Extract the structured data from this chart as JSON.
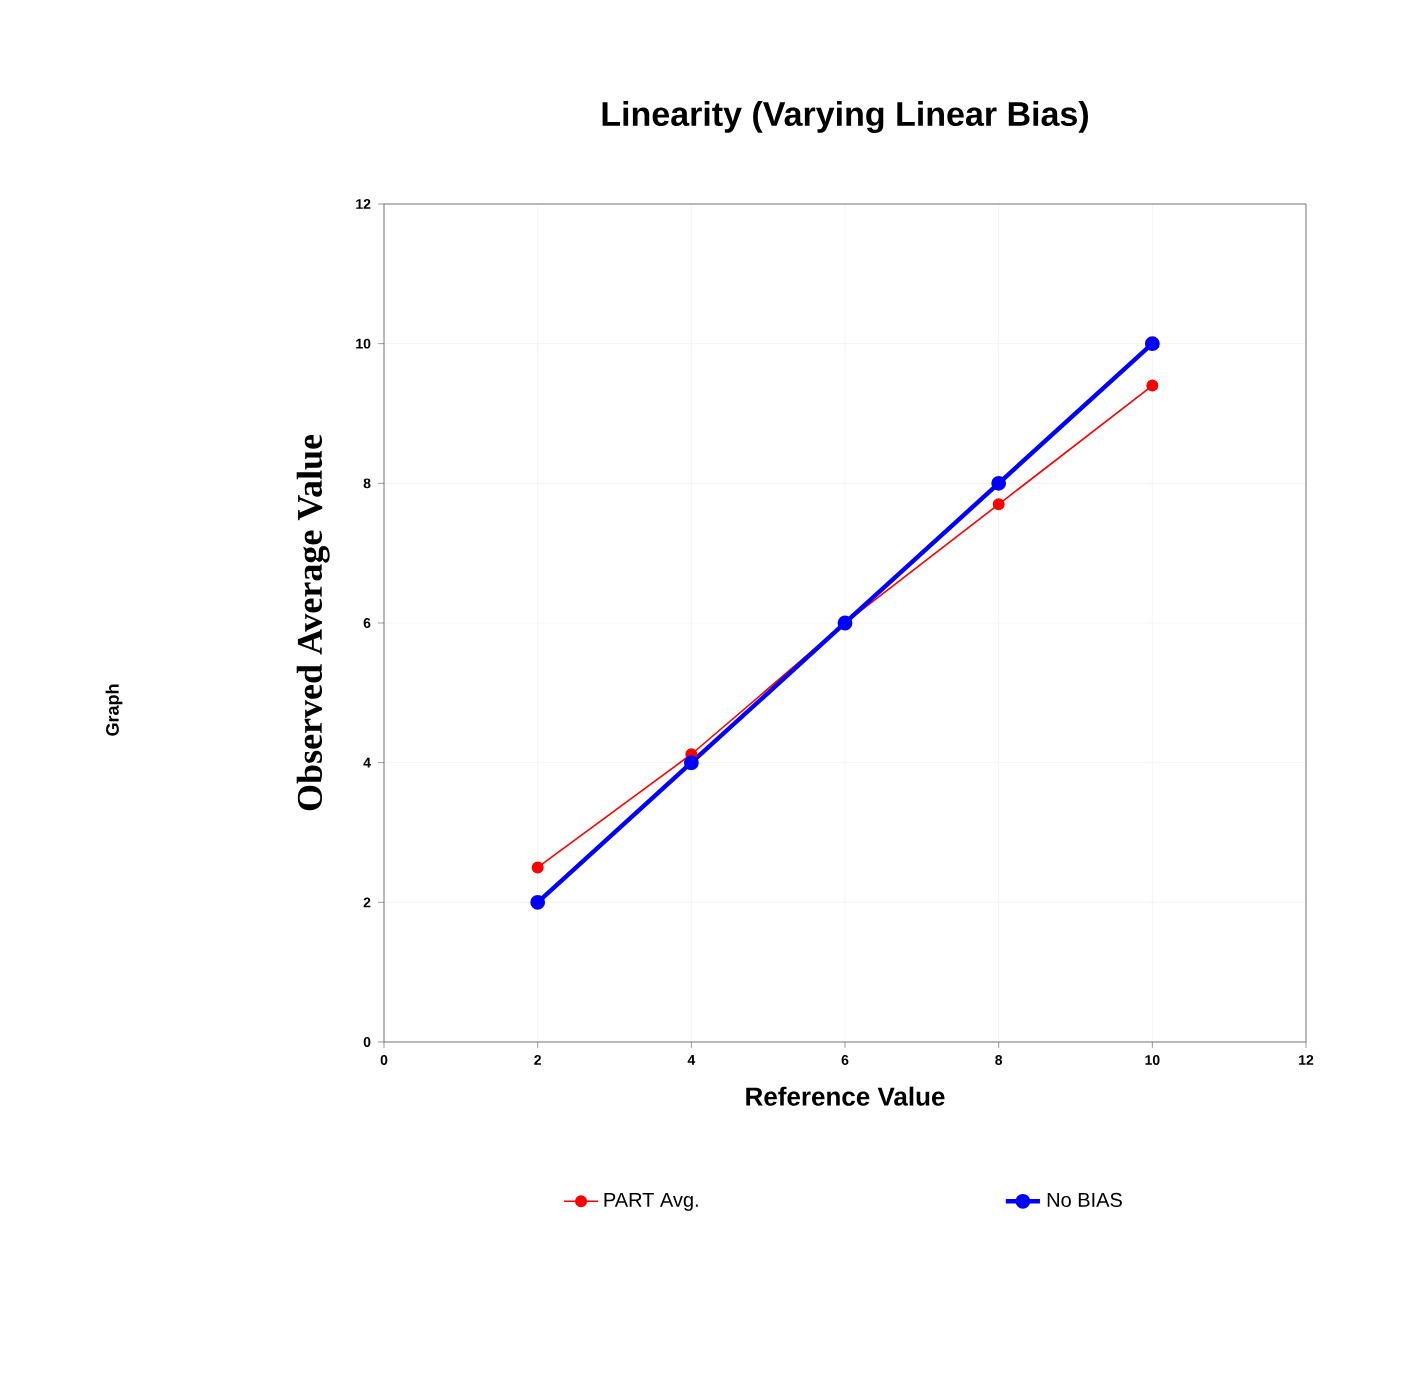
{
  "chart_data": {
    "type": "line",
    "title": "Linearity (Varying Linear Bias)",
    "xlabel": "Reference Value",
    "ylabel": "Observed Average Value",
    "x": [
      2,
      4,
      6,
      8,
      10
    ],
    "series": [
      {
        "name": "PART Avg.",
        "color": "#ff0000",
        "values": [
          2.5,
          4.12,
          6.0,
          7.7,
          9.4
        ]
      },
      {
        "name": "No BIAS",
        "color": "#0000ff",
        "values": [
          2,
          4,
          6,
          8,
          10
        ]
      }
    ],
    "xlim": [
      0,
      12
    ],
    "ylim": [
      0,
      12
    ],
    "xticks": [
      0,
      2,
      4,
      6,
      8,
      10,
      12
    ],
    "yticks": [
      0,
      2,
      4,
      6,
      8,
      10,
      12
    ],
    "grid": true,
    "legend": "bottom",
    "marker": "circle",
    "line_style": "solid",
    "annotations": [
      "Graph"
    ]
  }
}
